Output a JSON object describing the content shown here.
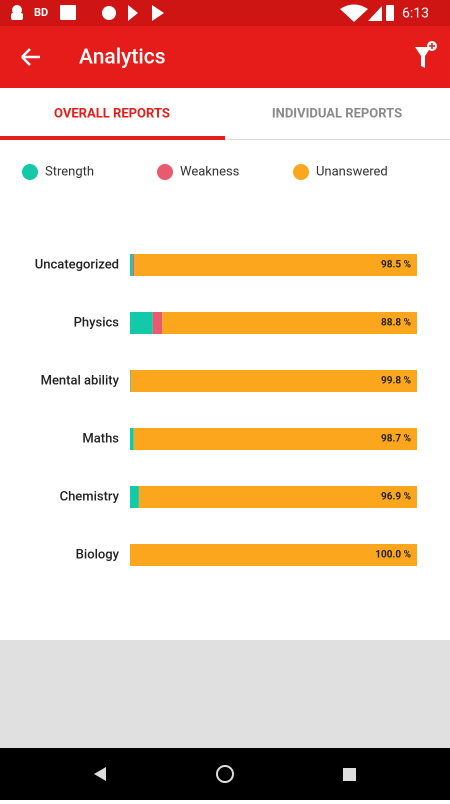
{
  "status_bar": {
    "time": "6:13"
  },
  "app_bar": {
    "title": "Analytics"
  },
  "tabs": [
    "OVERALL REPORTS",
    "INDIVIDUAL REPORTS"
  ],
  "chart_data": {
    "type": "bar",
    "orientation": "horizontal",
    "stacked": true,
    "categories": [
      "Uncategorized",
      "Physics",
      "Mental ability",
      "Maths",
      "Chemistry",
      "Biology"
    ],
    "series": [
      {
        "name": "Strength",
        "color": "#12c9a8",
        "values": [
          1.0,
          7.9,
          0.2,
          1.3,
          3.1,
          0
        ]
      },
      {
        "name": "Weakness",
        "color": "#ea5a6e",
        "values": [
          0.5,
          3.3,
          0,
          0,
          0,
          0
        ]
      },
      {
        "name": "Unanswered",
        "color": "#fca61e",
        "values": [
          98.5,
          88.8,
          99.8,
          98.7,
          96.9,
          100.0
        ],
        "value_labels": [
          "98.5 %",
          "88.8 %",
          "99.8 %",
          "98.7 %",
          "96.9 %",
          "100.0 %"
        ]
      }
    ]
  }
}
